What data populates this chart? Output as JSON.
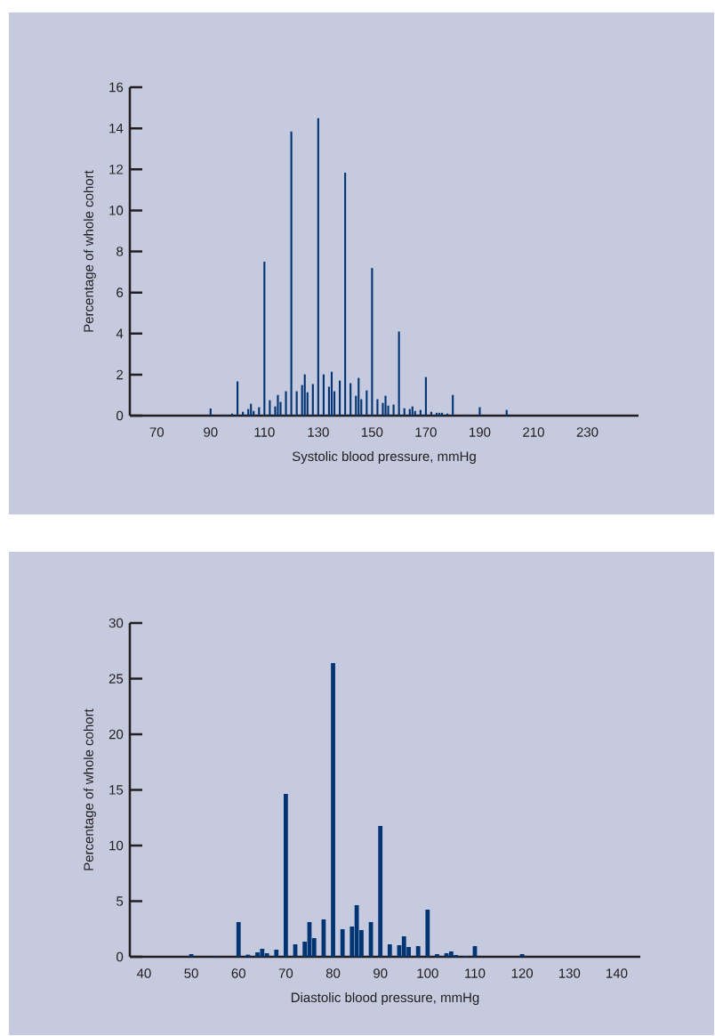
{
  "chart_data": [
    {
      "type": "bar",
      "xlabel": "Systolic blood pressure, mmHg",
      "ylabel": "Percentage of whole cohort",
      "color": "#003473",
      "x": [
        90,
        95,
        98,
        100,
        102,
        104,
        105,
        106,
        108,
        110,
        112,
        114,
        115,
        116,
        118,
        120,
        122,
        124,
        125,
        126,
        128,
        130,
        132,
        134,
        135,
        136,
        138,
        140,
        142,
        144,
        145,
        146,
        148,
        150,
        152,
        154,
        155,
        156,
        158,
        160,
        162,
        164,
        165,
        166,
        168,
        170,
        172,
        174,
        175,
        176,
        178,
        180,
        185,
        190,
        200
      ],
      "values": [
        0.35,
        0.05,
        0.1,
        1.67,
        0.19,
        0.32,
        0.58,
        0.23,
        0.41,
        7.5,
        0.75,
        0.45,
        1.01,
        0.67,
        1.19,
        13.84,
        1.19,
        1.49,
        2.01,
        1.14,
        1.54,
        14.49,
        2.01,
        1.41,
        2.14,
        1.19,
        1.71,
        11.84,
        1.58,
        0.97,
        1.84,
        0.8,
        1.23,
        7.19,
        0.8,
        0.62,
        0.97,
        0.49,
        0.54,
        4.1,
        0.36,
        0.32,
        0.45,
        0.23,
        0.28,
        1.88,
        0.19,
        0.14,
        0.14,
        0.14,
        0.1,
        1.01,
        0.05,
        0.41,
        0.28
      ],
      "xlim": [
        60,
        249
      ],
      "ylim": [
        0,
        16
      ],
      "xticks": [
        70,
        90,
        110,
        130,
        150,
        170,
        190,
        210,
        230
      ],
      "yticks": [
        0,
        2,
        4,
        6,
        8,
        10,
        12,
        14,
        16
      ]
    },
    {
      "type": "bar",
      "xlabel": "Diastolic blood pressure, mmHg",
      "ylabel": "Percentage of whole cohort",
      "color": "#003473",
      "x": [
        50,
        55,
        60,
        62,
        64,
        65,
        66,
        68,
        70,
        72,
        74,
        75,
        76,
        78,
        80,
        82,
        84,
        85,
        86,
        88,
        90,
        92,
        94,
        95,
        96,
        98,
        100,
        102,
        104,
        105,
        106,
        108,
        110,
        120
      ],
      "values": [
        0.24,
        0.05,
        3.12,
        0.19,
        0.4,
        0.72,
        0.32,
        0.64,
        14.64,
        1.12,
        1.36,
        3.12,
        1.68,
        3.36,
        26.4,
        2.48,
        2.72,
        4.64,
        2.4,
        3.12,
        11.76,
        1.12,
        1.04,
        1.84,
        0.88,
        0.96,
        4.24,
        0.24,
        0.32,
        0.48,
        0.16,
        0.08,
        0.96,
        0.24
      ],
      "xlim": [
        37,
        145
      ],
      "ylim": [
        0,
        30
      ],
      "xticks": [
        40,
        50,
        60,
        70,
        80,
        90,
        100,
        110,
        120,
        130,
        140
      ],
      "yticks": [
        0,
        5,
        10,
        15,
        20,
        25,
        30
      ]
    }
  ]
}
